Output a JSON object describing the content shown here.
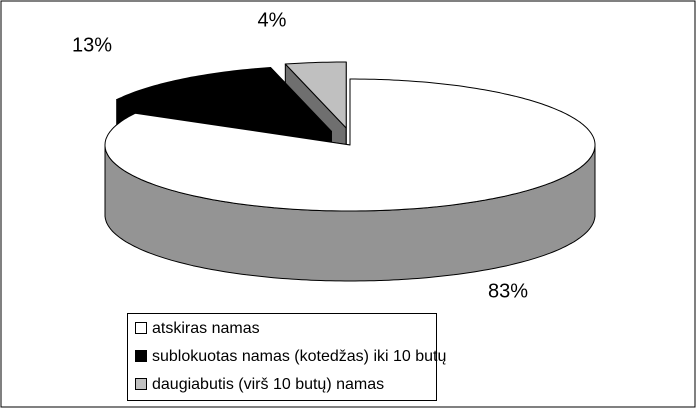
{
  "chart_data": {
    "type": "pie",
    "categories": [
      "atskiras namas",
      "sublokuotas namas (kotedžas) iki 10 butų",
      "daugiabutis (virš 10 butų) namas"
    ],
    "values": [
      83,
      13,
      4
    ],
    "value_labels": [
      "83%",
      "13%",
      "4%"
    ],
    "colors": [
      "#ffffff",
      "#000000",
      "#c0c0c0"
    ]
  }
}
